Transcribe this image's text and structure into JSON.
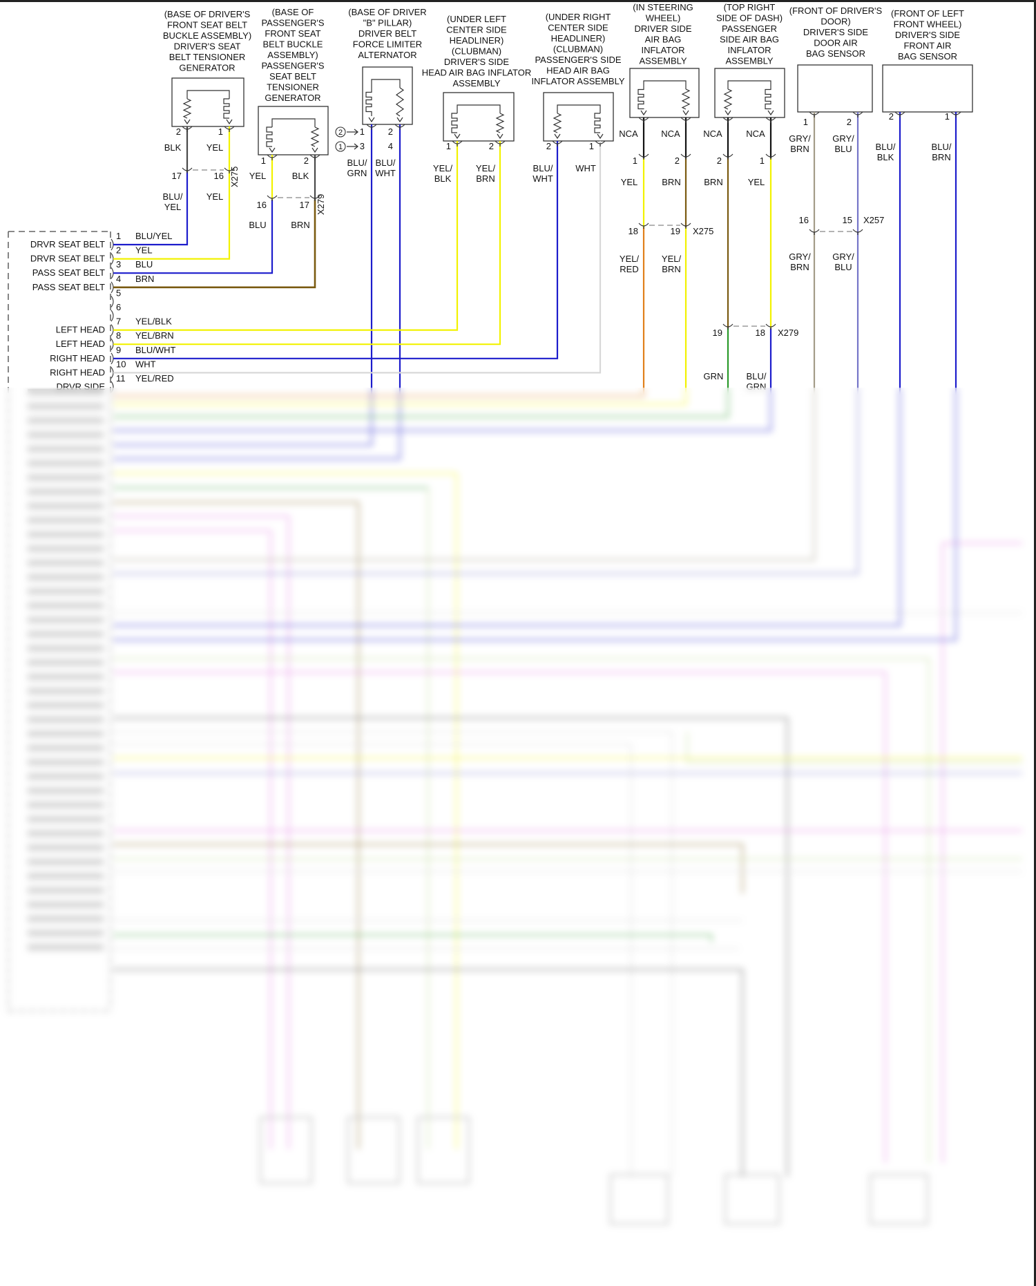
{
  "colors": {
    "BLK": "#4a4a4a",
    "YEL": "#f2f200",
    "BLU": "#1c1ccc",
    "BRN": "#7a5a10",
    "WHT": "#d8d8d8",
    "GRN": "#2a9a2a",
    "ORG": "#e0801a",
    "GRY_BRN": "#a39c88",
    "GRY_BLU": "#7474c8",
    "NCA": "#111111",
    "PINK": "#e070e0",
    "LTGRN": "#bcd890"
  },
  "components": [
    {
      "title": [
        "(BASE OF DRIVER'S",
        "FRONT SEAT BELT",
        "BUCKLE ASSEMBLY)",
        "DRIVER'S SEAT",
        "BELT TENSIONER",
        "GENERATOR"
      ],
      "pins": [
        {
          "num": "2",
          "wire": "BLK"
        },
        {
          "num": "1",
          "wire": "YEL"
        }
      ]
    },
    {
      "title": [
        "(BASE OF",
        "PASSENGER'S",
        "FRONT SEAT",
        "BELT BUCKLE",
        "ASSEMBLY)",
        "PASSENGER'S",
        "SEAT BELT",
        "TENSIONER",
        "GENERATOR"
      ],
      "pins": [
        {
          "num": "1",
          "wire": "YEL"
        },
        {
          "num": "2",
          "wire": "BLK"
        }
      ]
    },
    {
      "title": [
        "(BASE OF DRIVER",
        "\"B\" PILLAR)",
        "DRIVER BELT",
        "FORCE LIMITER",
        "ALTERNATOR"
      ],
      "pins": [
        {
          "num": "1",
          "alt_num": "3",
          "wire": "BLU/ GRN"
        },
        {
          "num": "2",
          "alt_num": "4",
          "wire": "BLU/ WHT"
        }
      ],
      "refs": [
        "2",
        "1"
      ]
    },
    {
      "title": [
        "(UNDER LEFT",
        "CENTER SIDE",
        "HEADLINER)",
        "(CLUBMAN)",
        "DRIVER'S SIDE",
        "HEAD AIR BAG INFLATOR",
        "ASSEMBLY"
      ],
      "pins": [
        {
          "num": "1",
          "wire": "YEL/ BLK"
        },
        {
          "num": "2",
          "wire": "YEL/ BRN"
        }
      ]
    },
    {
      "title": [
        "(UNDER RIGHT",
        "CENTER SIDE",
        "HEADLINER)",
        "(CLUBMAN)",
        "PASSENGER'S SIDE",
        "HEAD AIR BAG",
        "INFLATOR ASSEMBLY"
      ],
      "pins": [
        {
          "num": "2",
          "wire": "BLU/ WHT"
        },
        {
          "num": "1",
          "wire": "WHT"
        }
      ]
    },
    {
      "title": [
        "(IN STEERING",
        "WHEEL)",
        "DRIVER SIDE",
        "AIR BAG",
        "INFLATOR",
        "ASSEMBLY"
      ],
      "pins": [
        {
          "num": "1",
          "lead": "NCA",
          "wire": "YEL"
        },
        {
          "num": "2",
          "lead": "NCA",
          "wire": "BRN"
        }
      ]
    },
    {
      "title": [
        "(TOP RIGHT",
        "SIDE OF DASH)",
        "PASSENGER",
        "SIDE AIR BAG",
        "INFLATOR",
        "ASSEMBLY"
      ],
      "pins": [
        {
          "num": "2",
          "lead": "NCA",
          "wire": "BRN"
        },
        {
          "num": "1",
          "lead": "NCA",
          "wire": "YEL"
        }
      ]
    },
    {
      "title": [
        "(FRONT OF DRIVER'S",
        "DOOR)",
        "DRIVER'S SIDE",
        "DOOR AIR",
        "BAG SENSOR"
      ],
      "pins": [
        {
          "num": "1",
          "wire": "GRY/ BRN"
        },
        {
          "num": "2",
          "wire": "GRY/ BLU"
        }
      ]
    },
    {
      "title": [
        "(FRONT OF LEFT",
        "FRONT WHEEL)",
        "DRIVER'S SIDE",
        "FRONT AIR",
        "BAG SENSOR"
      ],
      "pins": [
        {
          "num": "2",
          "wire": "BLU/ BLK"
        },
        {
          "num": "1",
          "wire": "BLU/ BRN"
        }
      ]
    }
  ],
  "connectors": [
    {
      "name": "X275",
      "pins": [
        "17",
        "16"
      ],
      "wires_below": [
        "BLU/ YEL",
        "YEL"
      ]
    },
    {
      "name": "X279",
      "pins": [
        "16",
        "17"
      ],
      "wires_below": [
        "BLU",
        "BRN"
      ]
    },
    {
      "name": "X275",
      "pins": [
        "18",
        "19"
      ],
      "wires_below": [
        "YEL/ RED",
        "YEL/ BRN"
      ]
    },
    {
      "name": "X279",
      "pins": [
        "19",
        "18"
      ],
      "wires_below": [
        "GRN",
        "BLU/ GRN"
      ]
    },
    {
      "name": "X257",
      "pins": [
        "16",
        "15"
      ],
      "wires_below": [
        "GRY/ BRN",
        "GRY/ BLU"
      ]
    }
  ],
  "module_pins": [
    {
      "num": "1",
      "name": "DRVR SEAT BELT",
      "wire": "BLU/YEL"
    },
    {
      "num": "2",
      "name": "DRVR SEAT BELT",
      "wire": "YEL"
    },
    {
      "num": "3",
      "name": "PASS SEAT BELT",
      "wire": "BLU"
    },
    {
      "num": "4",
      "name": "PASS SEAT BELT",
      "wire": "BRN"
    },
    {
      "num": "5",
      "name": "",
      "wire": ""
    },
    {
      "num": "6",
      "name": "",
      "wire": ""
    },
    {
      "num": "7",
      "name": "LEFT HEAD",
      "wire": "YEL/BLK"
    },
    {
      "num": "8",
      "name": "LEFT HEAD",
      "wire": "YEL/BRN"
    },
    {
      "num": "9",
      "name": "RIGHT HEAD",
      "wire": "BLU/WHT"
    },
    {
      "num": "10",
      "name": "RIGHT HEAD",
      "wire": "WHT"
    },
    {
      "num": "11",
      "name": "DRVR SIDE",
      "wire": "YEL/RED"
    }
  ]
}
